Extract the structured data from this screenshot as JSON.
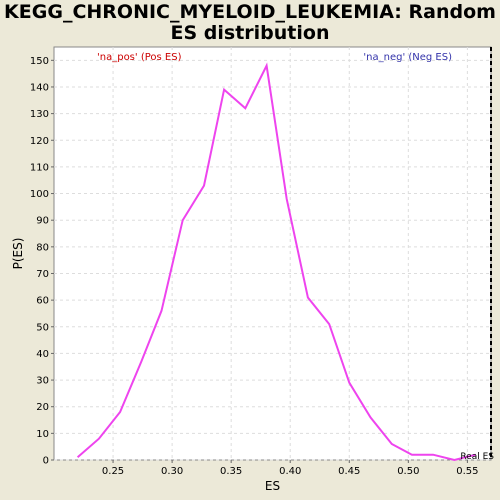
{
  "chart_data": {
    "type": "line",
    "title_line1": "KEGG_CHRONIC_MYELOID_LEUKEMIA: Random",
    "title_line2": "ES distribution",
    "xlabel": "ES",
    "ylabel": "P(ES)",
    "xlim": [
      0.2,
      0.57
    ],
    "ylim": [
      0,
      155
    ],
    "x_ticks": [
      0.25,
      0.3,
      0.35,
      0.4,
      0.45,
      0.5,
      0.55
    ],
    "x_tick_labels": [
      "0.25",
      "0.30",
      "0.35",
      "0.40",
      "0.45",
      "0.50",
      "0.55"
    ],
    "y_ticks": [
      0,
      10,
      20,
      30,
      40,
      50,
      60,
      70,
      80,
      90,
      100,
      110,
      120,
      130,
      140,
      150
    ],
    "grid": true,
    "legend_left": "'na_pos' (Pos ES)",
    "legend_right": "'na_neg' (Neg ES)",
    "colors": {
      "line": "#EE44EE",
      "legend_pos": "#CC0000",
      "legend_neg": "#3333AA",
      "real_es": "#000000",
      "background": "#ECE9D8",
      "plot": "#FFFFFF",
      "grid": "#DDDDDD"
    },
    "series": [
      {
        "x": [
          0.22,
          0.238,
          0.256,
          0.274,
          0.291,
          0.309,
          0.327,
          0.344,
          0.362,
          0.38,
          0.397,
          0.415,
          0.433,
          0.45,
          0.468,
          0.486,
          0.503,
          0.521,
          0.539,
          0.557
        ],
        "values": [
          1,
          8,
          18,
          37,
          56,
          90,
          103,
          139,
          132,
          148,
          98,
          61,
          51,
          29,
          16,
          6,
          2,
          2,
          0,
          2
        ]
      }
    ],
    "real_es": {
      "x": 0.57,
      "label": "Real ES"
    }
  }
}
